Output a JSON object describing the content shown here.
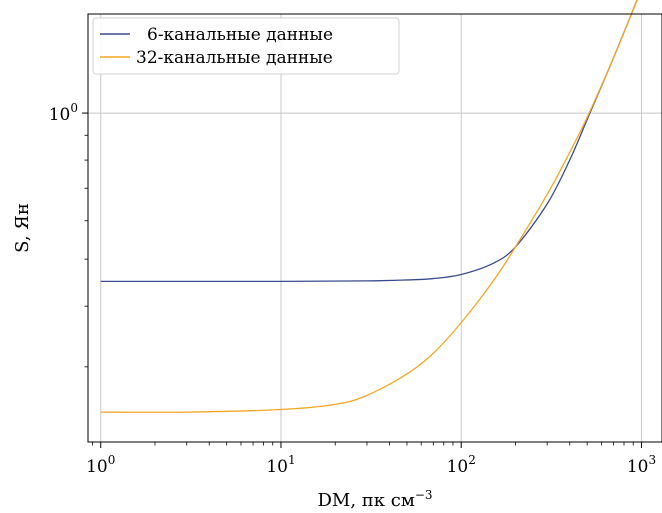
{
  "chart_data": {
    "type": "line",
    "xlabel": "DM, пк см⁻³",
    "ylabel": "S, Ян",
    "xscale": "log",
    "yscale": "log",
    "xlim": [
      0.85,
      1300
    ],
    "ylim": [
      0.21,
      1.6
    ],
    "grid": true,
    "legend": "top-left",
    "x_ticks": [
      {
        "value": 1,
        "base": "10",
        "exp": "0"
      },
      {
        "value": 10,
        "base": "10",
        "exp": "1"
      },
      {
        "value": 100,
        "base": "10",
        "exp": "2"
      },
      {
        "value": 1000,
        "base": "10",
        "exp": "3"
      }
    ],
    "y_ticks": [
      {
        "value": 1,
        "base": "10",
        "exp": "0"
      }
    ],
    "series": [
      {
        "name": "6-канальные данные",
        "color": "#3b4b8f",
        "x": [
          1,
          3,
          10,
          30,
          50,
          70,
          100,
          150,
          200,
          300,
          400,
          500,
          700,
          1000
        ],
        "y": [
          0.45,
          0.45,
          0.45,
          0.451,
          0.453,
          0.456,
          0.465,
          0.49,
          0.53,
          0.65,
          0.8,
          0.97,
          1.3,
          1.8
        ]
      },
      {
        "name": "32-канальные данные",
        "color": "#f5a623",
        "x": [
          1,
          3,
          10,
          20,
          30,
          50,
          70,
          100,
          150,
          200,
          300,
          400,
          500,
          700,
          1000
        ],
        "y": [
          0.242,
          0.242,
          0.245,
          0.251,
          0.262,
          0.29,
          0.32,
          0.37,
          0.45,
          0.53,
          0.68,
          0.83,
          0.98,
          1.3,
          1.8
        ]
      }
    ]
  }
}
